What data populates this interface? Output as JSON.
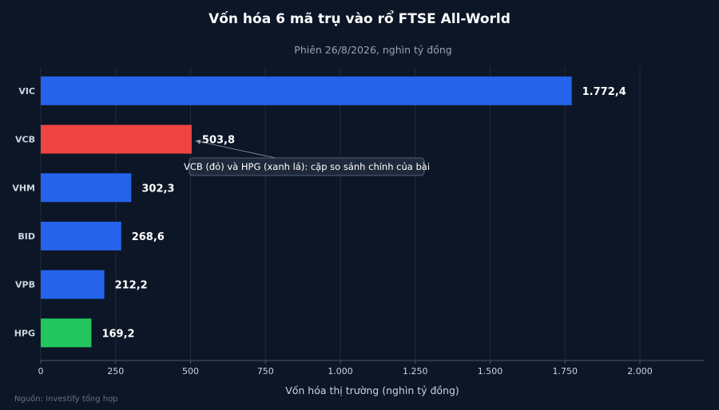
{
  "chart_data": {
    "type": "bar",
    "orientation": "horizontal",
    "title": "Vốn hóa 6 mã trụ vào rổ FTSE All-World",
    "subtitle": "Phiên 26/8/2026, nghìn tỷ đồng",
    "xlabel": "Vốn hóa thị trường (nghìn tỷ đồng)",
    "ylabel": "",
    "categories": [
      "VIC",
      "VCB",
      "VHM",
      "BID",
      "VPB",
      "HPG"
    ],
    "values": [
      1772.4,
      503.8,
      302.3,
      268.6,
      212.2,
      169.2
    ],
    "value_labels": [
      "1.772,4",
      "503,8",
      "302,3",
      "268,6",
      "212,2",
      "169,2"
    ],
    "bar_colors": [
      "#2563eb",
      "#ef4444",
      "#2563eb",
      "#2563eb",
      "#2563eb",
      "#22c55e"
    ],
    "xlim": [
      0,
      2200
    ],
    "xticks": [
      0,
      250,
      500,
      750,
      1000,
      1250,
      1500,
      1750,
      2000
    ],
    "xtick_labels": [
      "0",
      "250",
      "500",
      "750",
      "1.000",
      "1.250",
      "1.500",
      "1.750",
      "2.000"
    ],
    "grid": true,
    "annotation": {
      "text": "VCB (đỏ) và HPG (xanh lá): cặp so sánh chính của bài",
      "target_category": "VCB"
    },
    "source": "Nguồn: Investify tổng hợp"
  },
  "colors": {
    "background": "#0c1626",
    "grid": "#1f2a3a",
    "axis": "#4b5563",
    "annotation_bg": "#1e293b",
    "annotation_border": "#64748b"
  }
}
